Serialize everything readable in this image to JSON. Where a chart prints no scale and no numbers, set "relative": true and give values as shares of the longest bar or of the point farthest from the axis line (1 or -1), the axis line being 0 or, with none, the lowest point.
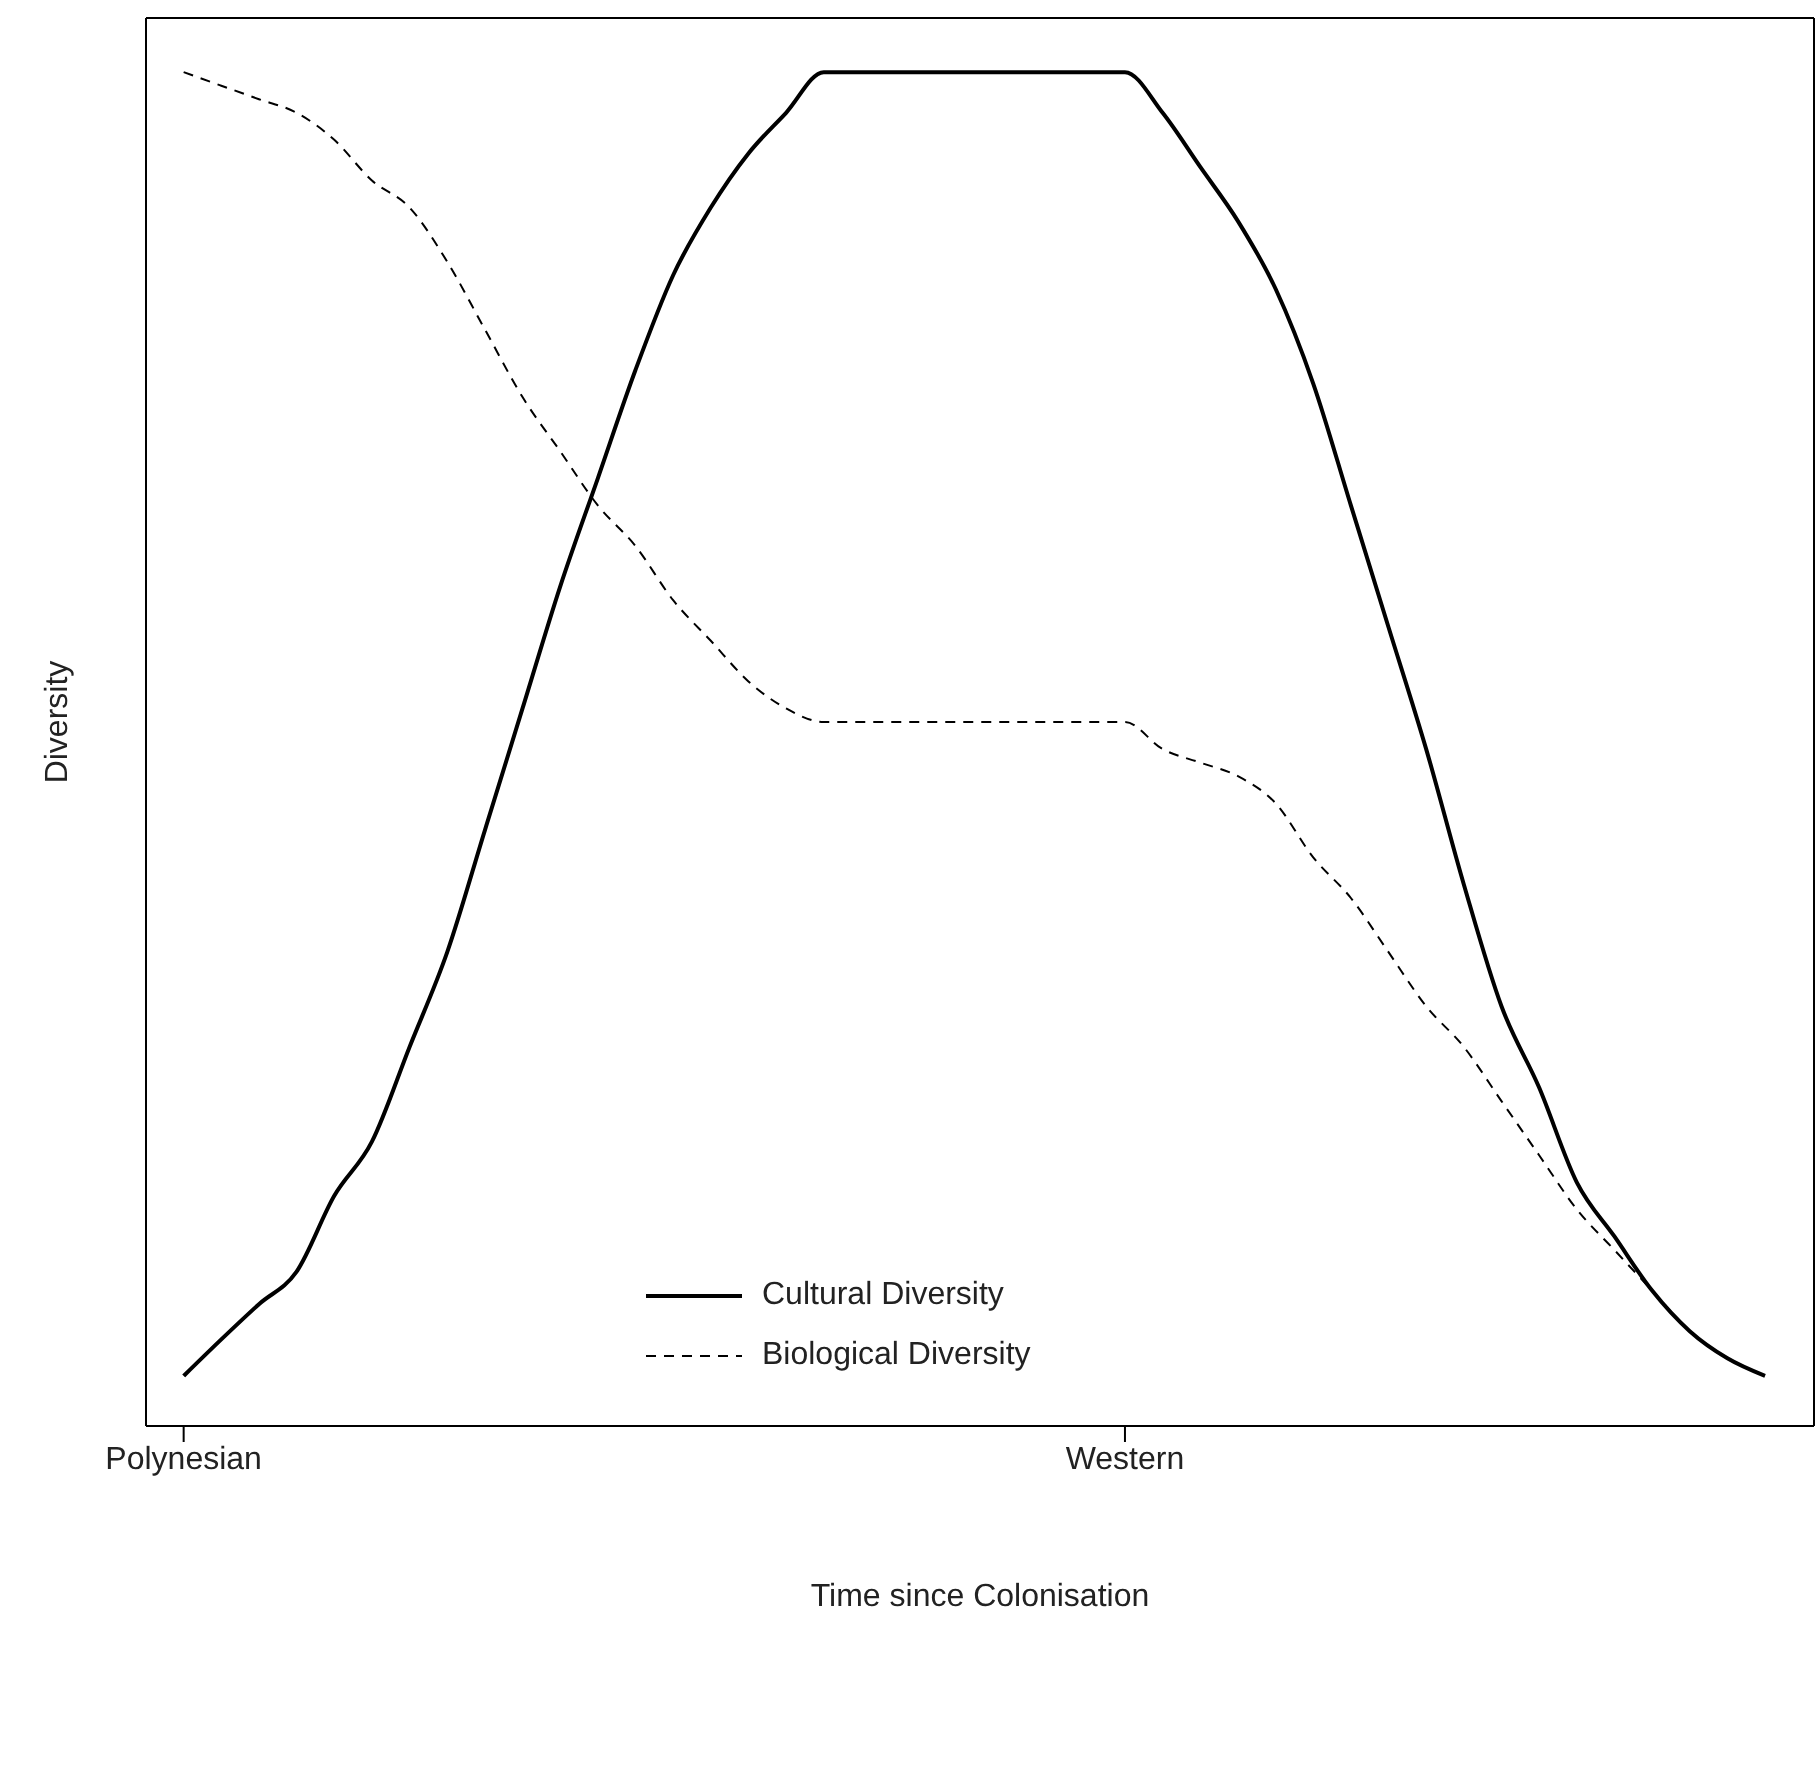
{
  "chart_data": {
    "type": "line",
    "relative": true,
    "xlabel": "Time since Colonisation",
    "ylabel": "Diversity",
    "categories": [
      "Polynesian",
      null,
      null,
      null,
      null,
      null,
      null,
      null,
      null,
      null,
      null,
      null,
      null,
      null,
      null,
      null,
      null,
      null,
      null,
      null,
      null,
      null,
      null,
      null,
      null,
      "Western",
      null,
      null,
      null,
      null,
      null,
      null,
      null,
      null,
      null,
      null,
      null,
      null,
      null,
      null,
      null,
      null,
      null
    ],
    "series": [
      {
        "name": "Cultural Diversity",
        "color": "#000000",
        "line_style": "solid",
        "values": [
          0.037,
          0.064,
          0.09,
          0.114,
          0.17,
          0.21,
          0.28,
          0.35,
          0.44,
          0.53,
          0.62,
          0.7,
          0.78,
          0.85,
          0.9,
          0.94,
          0.97,
          1.0,
          1.0,
          1.0,
          1.0,
          1.0,
          1.0,
          1.0,
          1.0,
          1.0,
          0.97,
          0.93,
          0.89,
          0.84,
          0.77,
          0.68,
          0.59,
          0.5,
          0.4,
          0.31,
          0.25,
          0.18,
          0.14,
          0.1,
          0.07,
          0.05,
          0.037
        ]
      },
      {
        "name": "Biological Diversity",
        "color": "#000000",
        "line_style": "dashed",
        "values": [
          1.0,
          0.99,
          0.98,
          0.97,
          0.95,
          0.92,
          0.9,
          0.86,
          0.81,
          0.76,
          0.72,
          0.68,
          0.65,
          0.61,
          0.58,
          0.55,
          0.53,
          0.52,
          0.52,
          0.52,
          0.52,
          0.52,
          0.52,
          0.52,
          0.52,
          0.52,
          0.5,
          0.49,
          0.48,
          0.46,
          0.42,
          0.39,
          0.35,
          0.31,
          0.28,
          0.24,
          0.2,
          0.16,
          0.13,
          0.1,
          0.07,
          0.05,
          0.037
        ]
      }
    ],
    "legend": "bottom",
    "marker": "none",
    "grid": false
  }
}
